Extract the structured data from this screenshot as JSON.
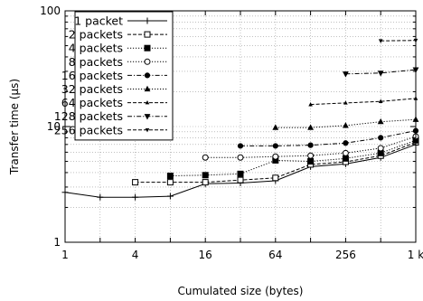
{
  "chart_data": {
    "type": "line",
    "title": "",
    "xlabel": "Cumulated size (bytes)",
    "ylabel": "Transfer time (µs)",
    "xscale": "log2",
    "yscale": "log10",
    "xlim": [
      1,
      1024
    ],
    "ylim": [
      1,
      100
    ],
    "grid": true,
    "legend_position": "top-left",
    "x_ticks": [
      {
        "value": 1,
        "label": "1"
      },
      {
        "value": 4,
        "label": "4"
      },
      {
        "value": 16,
        "label": "16"
      },
      {
        "value": 64,
        "label": "64"
      },
      {
        "value": 256,
        "label": "256"
      },
      {
        "value": 1024,
        "label": "1 k"
      }
    ],
    "y_ticks": [
      {
        "value": 1,
        "label": "1"
      },
      {
        "value": 10,
        "label": "10"
      },
      {
        "value": 100,
        "label": "100"
      }
    ],
    "series": [
      {
        "name": "1 packet",
        "marker": "plus",
        "dash": "solid",
        "points": [
          [
            1,
            2.7
          ],
          [
            2,
            2.45
          ],
          [
            4,
            2.45
          ],
          [
            8,
            2.5
          ],
          [
            16,
            3.2
          ],
          [
            32,
            3.25
          ],
          [
            64,
            3.4
          ],
          [
            128,
            4.5
          ],
          [
            256,
            4.75
          ],
          [
            512,
            5.4
          ],
          [
            1024,
            7.0
          ]
        ]
      },
      {
        "name": "2 packets",
        "marker": "square-open",
        "dash": "dashed",
        "points": [
          [
            4,
            3.3
          ],
          [
            8,
            3.3
          ],
          [
            16,
            3.3
          ],
          [
            32,
            3.45
          ],
          [
            64,
            3.6
          ],
          [
            128,
            4.7
          ],
          [
            256,
            4.95
          ],
          [
            512,
            5.6
          ],
          [
            1024,
            7.3
          ]
        ]
      },
      {
        "name": "4 packets",
        "marker": "square-filled",
        "dash": "dotted",
        "points": [
          [
            8,
            3.75
          ],
          [
            16,
            3.8
          ],
          [
            32,
            3.9
          ],
          [
            64,
            5.1
          ],
          [
            128,
            5.0
          ],
          [
            256,
            5.3
          ],
          [
            512,
            5.9
          ],
          [
            1024,
            7.6
          ]
        ]
      },
      {
        "name": "8 packets",
        "marker": "circle-open",
        "dash": "dotted",
        "points": [
          [
            16,
            5.4
          ],
          [
            32,
            5.4
          ],
          [
            64,
            5.5
          ],
          [
            128,
            5.6
          ],
          [
            256,
            5.9
          ],
          [
            512,
            6.5
          ],
          [
            1024,
            8.2
          ]
        ]
      },
      {
        "name": "16 packets",
        "marker": "circle-filled",
        "dash": "dashdot",
        "points": [
          [
            32,
            6.8
          ],
          [
            64,
            6.8
          ],
          [
            128,
            6.9
          ],
          [
            256,
            7.2
          ],
          [
            512,
            8.0
          ],
          [
            1024,
            9.2
          ]
        ]
      },
      {
        "name": "32 packets",
        "marker": "triangle-up",
        "dash": "dotted",
        "points": [
          [
            64,
            9.8
          ],
          [
            128,
            9.8
          ],
          [
            256,
            10.2
          ],
          [
            512,
            11.0
          ],
          [
            1024,
            11.5
          ]
        ]
      },
      {
        "name": "64 packets",
        "marker": "triangle-up-small",
        "dash": "dashed",
        "points": [
          [
            128,
            15.5
          ],
          [
            256,
            16.0
          ],
          [
            512,
            16.5
          ],
          [
            1024,
            17.5
          ]
        ]
      },
      {
        "name": "128 packets",
        "marker": "triangle-down",
        "dash": "dashdot",
        "points": [
          [
            256,
            28.5
          ],
          [
            512,
            29.0
          ],
          [
            1024,
            31.0
          ]
        ]
      },
      {
        "name": "256 packets",
        "marker": "triangle-down-small",
        "dash": "dashed",
        "points": [
          [
            512,
            55.0
          ],
          [
            1024,
            55.5
          ]
        ]
      }
    ]
  }
}
